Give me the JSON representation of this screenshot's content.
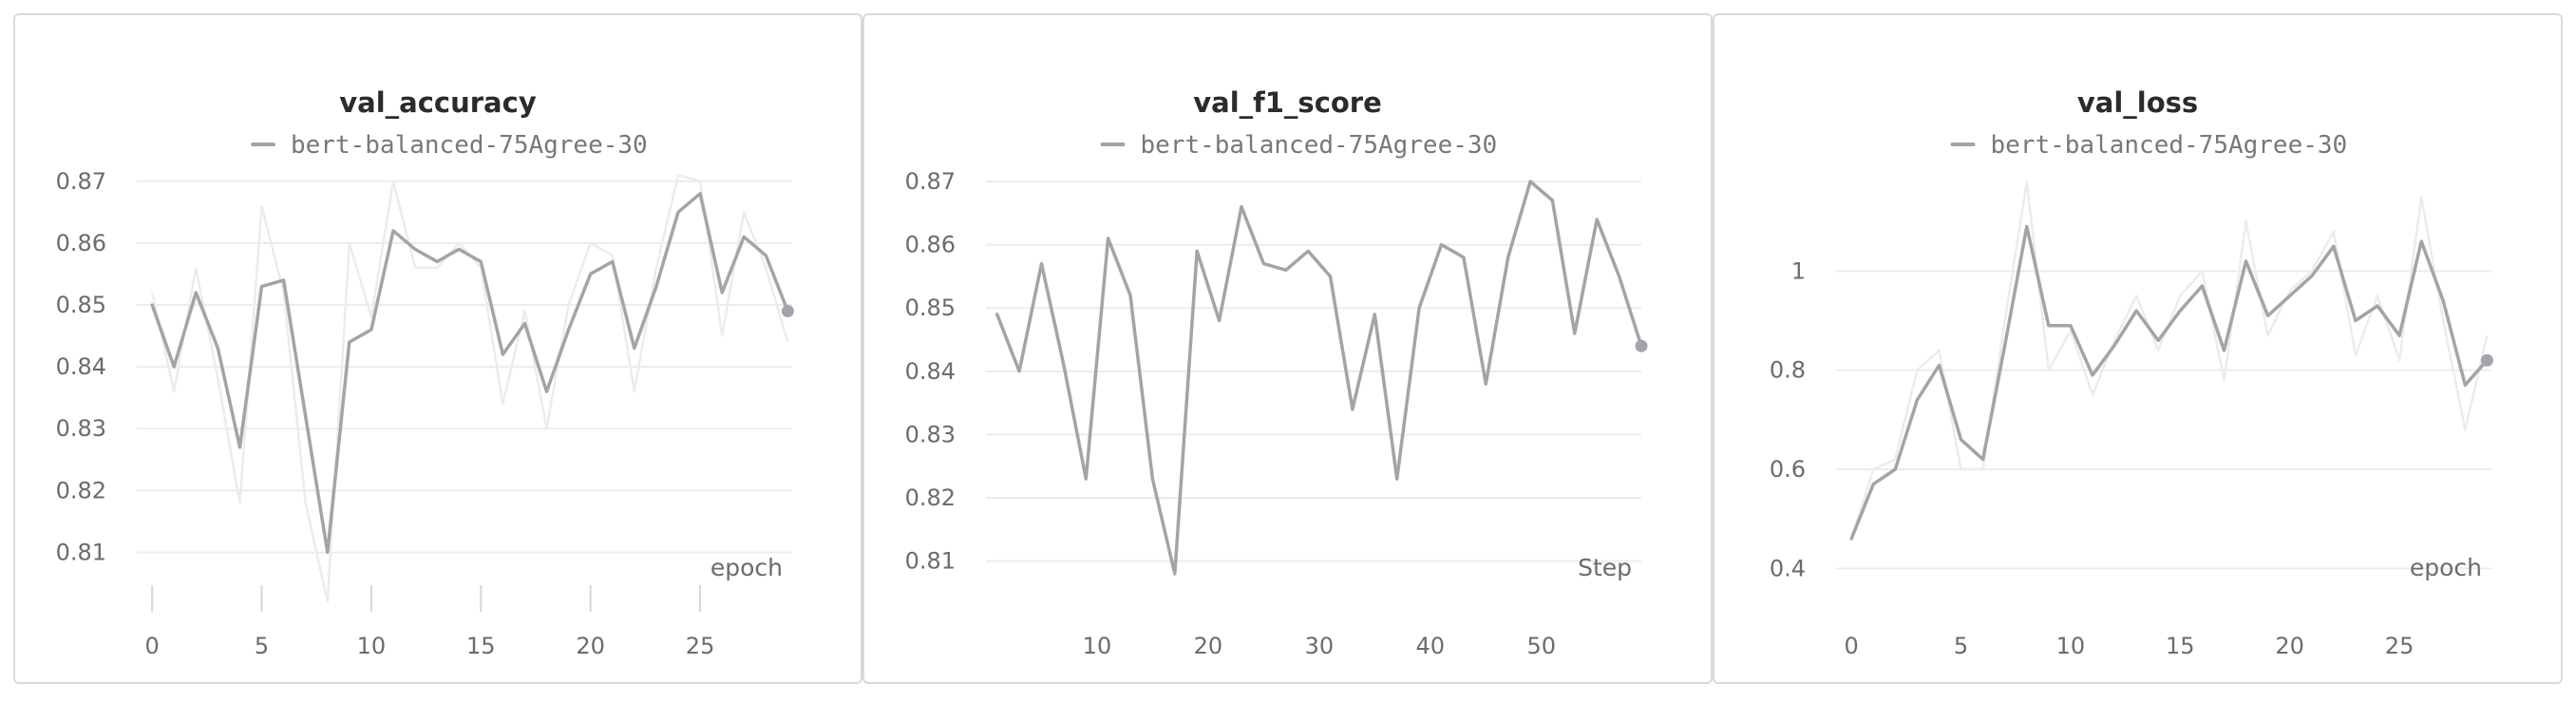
{
  "colors": {
    "line": "#a3a4a9",
    "raw": "#ececee",
    "grid": "#ececee",
    "tickmark": "#d6d6d9"
  },
  "chart_data": [
    {
      "type": "line",
      "title": "val_accuracy",
      "legend": "bert-balanced-75Agree-30",
      "xlabel": "epoch",
      "xlim": [
        -0.7,
        29.2
      ],
      "ylim": [
        0.805,
        0.8715
      ],
      "xticks": [
        0,
        5,
        10,
        15,
        20,
        25
      ],
      "yticks": [
        0.81,
        0.82,
        0.83,
        0.84,
        0.85,
        0.86,
        0.87
      ],
      "ytick_labels": [
        "0.81",
        "0.82",
        "0.83",
        "0.84",
        "0.85",
        "0.86",
        "0.87"
      ],
      "bottom_ticks": true,
      "series": [
        {
          "x": [
            0,
            1,
            2,
            3,
            4,
            5,
            6,
            7,
            8,
            9,
            10,
            11,
            12,
            13,
            14,
            15,
            16,
            17,
            18,
            19,
            20,
            21,
            22,
            23,
            24,
            25,
            26,
            27,
            28,
            29
          ],
          "y": [
            0.85,
            0.84,
            0.852,
            0.843,
            0.827,
            0.853,
            0.854,
            0.832,
            0.81,
            0.844,
            0.846,
            0.862,
            0.859,
            0.857,
            0.859,
            0.857,
            0.842,
            0.847,
            0.836,
            0.846,
            0.855,
            0.857,
            0.843,
            0.853,
            0.865,
            0.868,
            0.852,
            0.861,
            0.858,
            0.849
          ]
        }
      ],
      "raw_series": {
        "x": [
          0,
          1,
          2,
          3,
          4,
          5,
          6,
          7,
          8,
          9,
          10,
          11,
          12,
          13,
          14,
          15,
          16,
          17,
          18,
          19,
          20,
          21,
          22,
          23,
          24,
          25,
          26,
          27,
          28,
          29
        ],
        "y": [
          0.852,
          0.836,
          0.856,
          0.838,
          0.818,
          0.866,
          0.852,
          0.818,
          0.802,
          0.86,
          0.848,
          0.87,
          0.856,
          0.856,
          0.86,
          0.856,
          0.834,
          0.849,
          0.83,
          0.85,
          0.86,
          0.858,
          0.836,
          0.856,
          0.871,
          0.87,
          0.845,
          0.865,
          0.856,
          0.844
        ]
      }
    },
    {
      "type": "line",
      "title": "val_f1_score",
      "legend": "bert-balanced-75Agree-30",
      "xlabel": "Step",
      "xlim": [
        0,
        59
      ],
      "ylim": [
        0.8065,
        0.8715
      ],
      "xticks": [
        10,
        20,
        30,
        40,
        50
      ],
      "yticks": [
        0.81,
        0.82,
        0.83,
        0.84,
        0.85,
        0.86,
        0.87
      ],
      "ytick_labels": [
        "0.81",
        "0.82",
        "0.83",
        "0.84",
        "0.85",
        "0.86",
        "0.87"
      ],
      "bottom_ticks": false,
      "series": [
        {
          "x": [
            1,
            3,
            5,
            7,
            9,
            11,
            13,
            15,
            17,
            19,
            21,
            23,
            25,
            27,
            29,
            31,
            33,
            35,
            37,
            39,
            41,
            43,
            45,
            47,
            49,
            51,
            53,
            55,
            57,
            59
          ],
          "y": [
            0.849,
            0.84,
            0.857,
            0.841,
            0.823,
            0.861,
            0.852,
            0.823,
            0.808,
            0.859,
            0.848,
            0.866,
            0.857,
            0.856,
            0.859,
            0.855,
            0.834,
            0.849,
            0.823,
            0.85,
            0.86,
            0.858,
            0.838,
            0.858,
            0.87,
            0.867,
            0.846,
            0.864,
            0.855,
            0.844
          ]
        }
      ]
    },
    {
      "type": "line",
      "title": "val_loss",
      "legend": "bert-balanced-75Agree-30",
      "xlabel": "epoch",
      "xlim": [
        -0.7,
        29.2
      ],
      "ylim": [
        0.37,
        1.2
      ],
      "xticks": [
        0,
        5,
        10,
        15,
        20,
        25
      ],
      "yticks": [
        0.4,
        0.6,
        0.8,
        1.0
      ],
      "ytick_labels": [
        "0.4",
        "0.6",
        "0.8",
        "1"
      ],
      "bottom_ticks": false,
      "series": [
        {
          "x": [
            0,
            1,
            2,
            3,
            4,
            5,
            6,
            7,
            8,
            9,
            10,
            11,
            12,
            13,
            14,
            15,
            16,
            17,
            18,
            19,
            20,
            21,
            22,
            23,
            24,
            25,
            26,
            27,
            28,
            29
          ],
          "y": [
            0.46,
            0.57,
            0.6,
            0.74,
            0.81,
            0.66,
            0.62,
            0.85,
            1.09,
            0.89,
            0.89,
            0.79,
            0.85,
            0.92,
            0.86,
            0.92,
            0.97,
            0.84,
            1.02,
            0.91,
            0.95,
            0.99,
            1.05,
            0.9,
            0.93,
            0.87,
            1.06,
            0.94,
            0.77,
            0.82
          ]
        }
      ],
      "raw_series": {
        "x": [
          0,
          1,
          2,
          3,
          4,
          5,
          6,
          7,
          8,
          9,
          10,
          11,
          12,
          13,
          14,
          15,
          16,
          17,
          18,
          19,
          20,
          21,
          22,
          23,
          24,
          25,
          26,
          27,
          28,
          29
        ],
        "y": [
          0.46,
          0.6,
          0.62,
          0.8,
          0.84,
          0.6,
          0.6,
          0.9,
          1.18,
          0.8,
          0.88,
          0.75,
          0.86,
          0.95,
          0.84,
          0.95,
          1.0,
          0.78,
          1.1,
          0.87,
          0.96,
          1.0,
          1.08,
          0.83,
          0.95,
          0.82,
          1.15,
          0.9,
          0.68,
          0.87
        ]
      }
    }
  ]
}
